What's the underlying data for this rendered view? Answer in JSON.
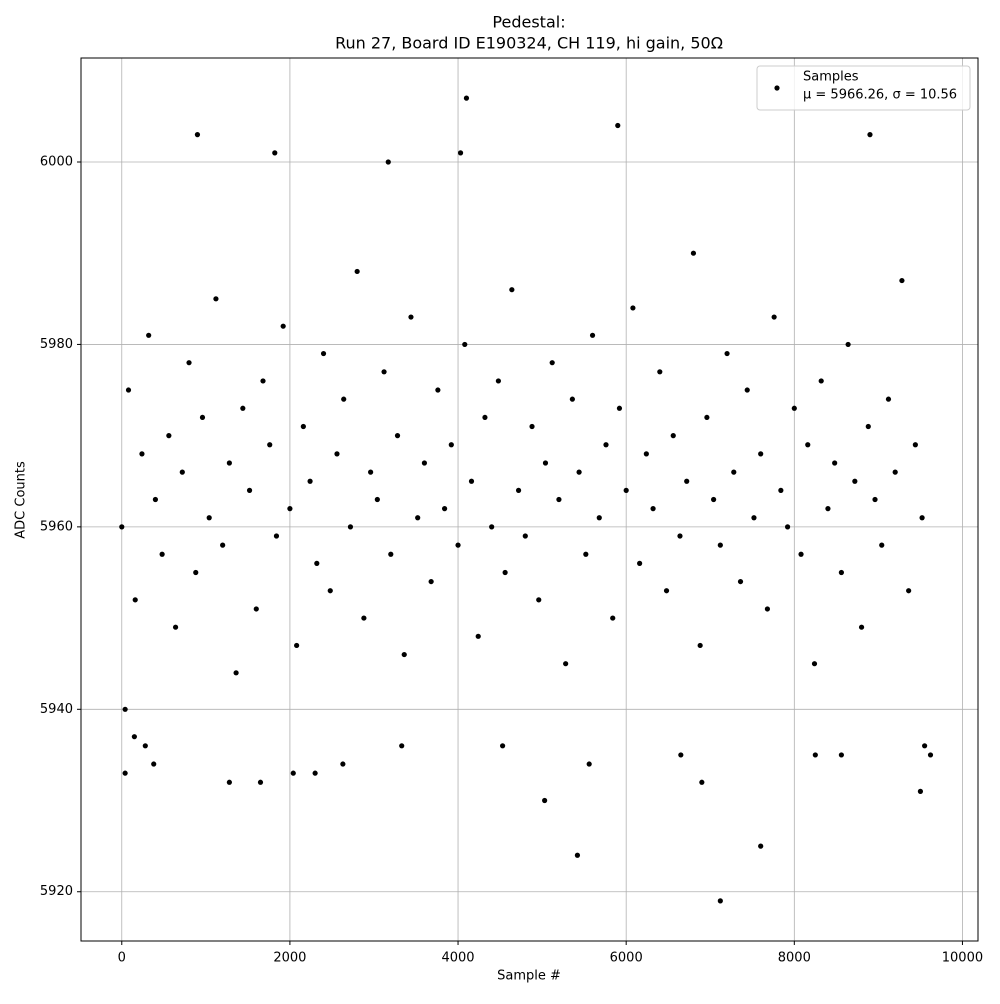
{
  "chart_data": {
    "type": "scatter",
    "title": "Pedestal:",
    "subtitle": "Run 27, Board ID E190324, CH 119, hi gain, 50Ω",
    "x_label": "Sample #",
    "y_label": "ADC Counts",
    "xlim": [
      -485,
      10185
    ],
    "ylim": [
      5914.6,
      6011.4
    ],
    "xticks": [
      0,
      2000,
      4000,
      6000,
      8000,
      10000
    ],
    "yticks": [
      5920,
      5940,
      5960,
      5980,
      6000
    ],
    "grid": true,
    "legend": "upper right",
    "legend_note": "μ = 5966.26, σ = 10.56",
    "x": [
      0,
      80,
      160,
      240,
      320,
      400,
      480,
      560,
      640,
      720,
      800,
      880,
      960,
      1040,
      1120,
      1200,
      1280,
      1360,
      1440,
      1520,
      1600,
      1680,
      1760,
      1840,
      1920,
      2000,
      2080,
      2160,
      2240,
      2320,
      2400,
      2480,
      2560,
      2640,
      2720,
      2800,
      2880,
      2960,
      3040,
      3120,
      3200,
      3280,
      3360,
      3440,
      3520,
      3600,
      3680,
      3760,
      3840,
      3920,
      4000,
      4080,
      4160,
      4240,
      4320,
      4400,
      4480,
      4560,
      4640,
      4720,
      4800,
      4880,
      4960,
      5040,
      5120,
      5200,
      5280,
      5360,
      5440,
      5520,
      5600,
      5680,
      5760,
      5840,
      5920,
      6000,
      6080,
      6160,
      6240,
      6320,
      6400,
      6480,
      6560,
      6640,
      6720,
      6800,
      6880,
      6960,
      7040,
      7120,
      7200,
      7280,
      7360,
      7440,
      7520,
      7600,
      7680,
      7760,
      7840,
      7920,
      8000,
      8080,
      8160,
      8240,
      8320,
      8400,
      8480,
      8560,
      8640,
      8720,
      8800,
      8880,
      8960,
      9040,
      9120,
      9200,
      9280,
      9360,
      9440,
      9520,
      40,
      40,
      900,
      1820,
      4100,
      4030,
      5900,
      8900,
      3170,
      7120,
      5420,
      7600,
      5030,
      9500,
      1280,
      1650,
      2040,
      2300,
      6900,
      3330,
      9550,
      4530,
      2630,
      380,
      280,
      150,
      5560,
      6650,
      8250,
      8560,
      9620
    ],
    "series": [
      {
        "name": "Samples",
        "color": "#000000",
        "values": [
          5960,
          5975,
          5952,
          5968,
          5981,
          5963,
          5957,
          5970,
          5949,
          5966,
          5978,
          5955,
          5972,
          5961,
          5985,
          5958,
          5967,
          5944,
          5973,
          5964,
          5951,
          5976,
          5969,
          5959,
          5982,
          5962,
          5947,
          5971,
          5965,
          5956,
          5979,
          5953,
          5968,
          5974,
          5960,
          5988,
          5950,
          5966,
          5963,
          5977,
          5957,
          5970,
          5946,
          5983,
          5961,
          5967,
          5954,
          5975,
          5962,
          5969,
          5958,
          5980,
          5965,
          5948,
          5972,
          5960,
          5976,
          5955,
          5986,
          5964,
          5959,
          5971,
          5952,
          5967,
          5978,
          5963,
          5945,
          5974,
          5966,
          5957,
          5981,
          5961,
          5969,
          5950,
          5973,
          5964,
          5984,
          5956,
          5968,
          5962,
          5977,
          5953,
          5970,
          5959,
          5965,
          5990,
          5947,
          5972,
          5963,
          5958,
          5979,
          5966,
          5954,
          5975,
          5961,
          5968,
          5951,
          5983,
          5964,
          5960,
          5973,
          5957,
          5969,
          5945,
          5976,
          5962,
          5967,
          5955,
          5980,
          5965,
          5949,
          5971,
          5963,
          5958,
          5974,
          5966,
          5987,
          5953,
          5969,
          5961,
          5940,
          5933,
          6003,
          6001,
          6007,
          6001,
          6004,
          6003,
          6000,
          5919,
          5924,
          5925,
          5930,
          5931,
          5932,
          5932,
          5933,
          5933,
          5932,
          5936,
          5936,
          5936,
          5934,
          5934,
          5936,
          5937,
          5934,
          5935,
          5935,
          5935,
          5935
        ]
      }
    ]
  }
}
